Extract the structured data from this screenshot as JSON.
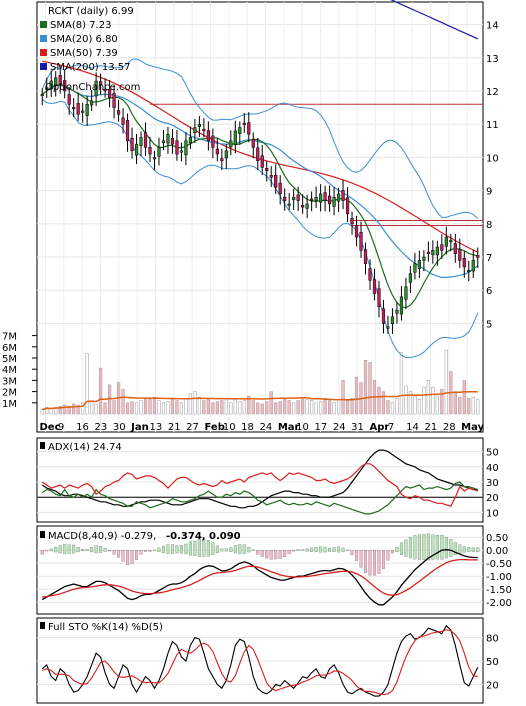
{
  "header": {
    "title": "RCKT (daily) 6.99",
    "watermark": "OptionChance.com"
  },
  "legend": [
    {
      "label": "SMA(8) 7.23",
      "color": "#1e6b1e"
    },
    {
      "label": "SMA(20) 6.80",
      "color": "#3a8ed8"
    },
    {
      "label": "SMA(50) 7.39",
      "color": "#d81e1e"
    },
    {
      "label": "SMA(200) 13.57",
      "color": "#1a1aa8"
    }
  ],
  "price_axis": {
    "ticks": [
      "14",
      "13",
      "12",
      "11",
      "10",
      "9",
      "8",
      "7",
      "6",
      "5"
    ]
  },
  "volume_axis": {
    "ticks": [
      "7M",
      "6M",
      "5M",
      "4M",
      "3M",
      "2M",
      "1M"
    ]
  },
  "date_axis": {
    "ticks": [
      "Dec",
      "9",
      "16",
      "23",
      "30",
      "Jan",
      "13",
      "21",
      "27",
      "Feb",
      "10",
      "18",
      "24",
      "Mar",
      "10",
      "17",
      "24",
      "31",
      "Apr",
      "7",
      "14",
      "21",
      "28",
      "May"
    ]
  },
  "adx": {
    "label": "ADX(14) 24.74",
    "ticks": [
      "50",
      "40",
      "30",
      "20",
      "10"
    ]
  },
  "macd": {
    "label": "MACD(8,40,9) -0.279,",
    "val1": "-0.374,",
    "val2": "0.090",
    "ticks": [
      "0.50",
      "0.00",
      "-0.50",
      "-1.00",
      "-1.50",
      "-2.00"
    ]
  },
  "sto": {
    "label": "Full STO %K(14) %D(5)",
    "ticks": [
      "80",
      "50",
      "20"
    ]
  },
  "colors": {
    "up": "#2e8b2e",
    "down": "#c41e5a",
    "sma8": "#1e6b1e",
    "sma20": "#3a8ed8",
    "sma50": "#d81e1e",
    "sma200": "#1a1aa8",
    "vol_up": "#ffffff",
    "vol_down": "#f4b8c0",
    "vol_sma": "#e06010",
    "resistance": "#c03030"
  },
  "chart_data": [
    {
      "type": "candlestick",
      "title": "RCKT (daily) 6.99",
      "close_series": [
        11.9,
        12.1,
        12.3,
        12.4,
        12.2,
        12.0,
        11.6,
        11.5,
        11.3,
        11.4,
        11.6,
        11.7,
        12.3,
        12.2,
        12.0,
        11.8,
        11.5,
        11.3,
        11.0,
        10.5,
        10.2,
        10.4,
        10.6,
        10.3,
        10.1,
        10.0,
        10.3,
        10.5,
        10.7,
        10.4,
        10.1,
        10.2,
        10.5,
        10.6,
        10.9,
        11.0,
        10.8,
        10.5,
        10.3,
        10.1,
        9.9,
        10.2,
        10.5,
        10.8,
        10.9,
        11.0,
        10.7,
        10.3,
        9.9,
        9.7,
        9.6,
        9.4,
        9.1,
        8.9,
        8.7,
        8.6,
        8.8,
        8.7,
        8.5,
        8.6,
        8.7,
        8.8,
        8.9,
        8.7,
        8.6,
        8.8,
        8.9,
        8.7,
        8.3,
        8.0,
        7.6,
        7.2,
        6.8,
        6.3,
        5.9,
        5.5,
        5.0,
        4.9,
        5.2,
        5.4,
        5.8,
        6.1,
        6.5,
        6.8,
        6.9,
        7.0,
        7.1,
        7.2,
        7.3,
        7.2,
        7.6,
        7.5,
        7.1,
        6.9,
        6.7,
        6.6,
        6.9,
        6.99
      ],
      "sma8_ends": [
        7.23
      ],
      "sma20_ends": [
        6.8
      ],
      "sma50_ends": [
        7.39
      ],
      "sma200_ends": [
        13.57
      ],
      "ylim": [
        4.5,
        14.5
      ]
    },
    {
      "type": "bar",
      "title": "Volume",
      "values": [
        0.4,
        0.6,
        0.5,
        0.6,
        0.7,
        0.8,
        0.7,
        0.9,
        0.8,
        1.0,
        5.4,
        1.2,
        0.9,
        4.1,
        1.0,
        2.6,
        1.2,
        2.8,
        2.2,
        1.0,
        1.1,
        1.0,
        1.2,
        1.4,
        1.3,
        1.5,
        1.2,
        1.0,
        1.1,
        1.3,
        1.2,
        1.0,
        1.4,
        1.8,
        2.0,
        1.5,
        1.2,
        1.3,
        1.0,
        1.1,
        1.2,
        1.4,
        1.0,
        1.3,
        1.1,
        1.2,
        1.6,
        1.2,
        1.0,
        0.9,
        1.1,
        2.0,
        1.0,
        1.1,
        1.3,
        1.2,
        1.0,
        1.2,
        1.4,
        1.3,
        1.2,
        1.0,
        1.1,
        1.4,
        1.2,
        1.0,
        1.3,
        3.0,
        1.2,
        1.4,
        3.3,
        2.8,
        4.8,
        4.6,
        3.0,
        2.4,
        2.0,
        1.2,
        1.0,
        1.4,
        5.5,
        2.5,
        2.0,
        1.6,
        1.3,
        2.4,
        3.0,
        2.4,
        1.6,
        2.2,
        5.7,
        3.8,
        2.0,
        1.5,
        3.0,
        1.4,
        1.5,
        1.3
      ],
      "ylim": [
        0,
        7.5
      ]
    },
    {
      "type": "line",
      "title": "ADX(14) 24.74",
      "series": [
        {
          "name": "ADX",
          "values": [
            28,
            26,
            25,
            24,
            22,
            21,
            21,
            22,
            22,
            21,
            20,
            19,
            18,
            17,
            17,
            16,
            15,
            15,
            14,
            14,
            15,
            16,
            17,
            17,
            18,
            18,
            18,
            17,
            16,
            15,
            15,
            15,
            16,
            17,
            18,
            19,
            19,
            19,
            18,
            17,
            16,
            15,
            14,
            14,
            13,
            13,
            14,
            14,
            15,
            17,
            19,
            21,
            22,
            23,
            24,
            24,
            23,
            23,
            22,
            22,
            21,
            21,
            20,
            20,
            20,
            21,
            22,
            23,
            26,
            30,
            34,
            38,
            42,
            46,
            49,
            51,
            51,
            50,
            48,
            46,
            44,
            42,
            41,
            40,
            38,
            37,
            36,
            34,
            32,
            31,
            30,
            29,
            28,
            28,
            27,
            26,
            25,
            24.74
          ]
        },
        {
          "name": "+DI",
          "values": [
            23,
            25,
            24,
            22,
            21,
            25,
            21,
            20,
            22,
            20,
            22,
            20,
            25,
            22,
            21,
            19,
            18,
            17,
            16,
            14,
            14,
            17,
            16,
            15,
            13,
            14,
            15,
            16,
            17,
            19,
            18,
            17,
            17,
            18,
            19,
            21,
            22,
            24,
            22,
            20,
            20,
            22,
            21,
            23,
            22,
            24,
            23,
            21,
            18,
            17,
            15,
            16,
            17,
            18,
            16,
            15,
            16,
            15,
            15,
            16,
            15,
            17,
            16,
            15,
            14,
            16,
            15,
            14,
            13,
            12,
            11,
            10,
            9,
            9,
            10,
            11,
            13,
            15,
            18,
            21,
            24,
            27,
            26,
            27,
            28,
            25,
            26,
            26,
            27,
            26,
            25,
            26,
            29,
            30,
            27,
            27,
            26,
            25
          ]
        },
        {
          "name": "-DI",
          "values": [
            30,
            28,
            26,
            27,
            28,
            26,
            28,
            27,
            26,
            28,
            29,
            27,
            22,
            24,
            27,
            28,
            30,
            31,
            34,
            36,
            35,
            32,
            33,
            34,
            34,
            33,
            31,
            29,
            26,
            29,
            32,
            33,
            33,
            31,
            29,
            28,
            29,
            28,
            27,
            28,
            31,
            29,
            30,
            31,
            32,
            30,
            33,
            34,
            35,
            36,
            35,
            36,
            33,
            31,
            33,
            36,
            35,
            36,
            35,
            34,
            33,
            31,
            31,
            32,
            30,
            29,
            30,
            31,
            32,
            34,
            37,
            40,
            42,
            42,
            40,
            37,
            34,
            31,
            29,
            27,
            22,
            20,
            19,
            21,
            20,
            18,
            18,
            17,
            16,
            16,
            15,
            14,
            20,
            27,
            24,
            26,
            25,
            24
          ]
        }
      ],
      "ylim": [
        5,
        55
      ]
    },
    {
      "type": "line",
      "title": "MACD(8,40,9)",
      "series": [
        {
          "name": "MACD",
          "values": [
            -1.9,
            -1.8,
            -1.7,
            -1.6,
            -1.5,
            -1.4,
            -1.35,
            -1.3,
            -1.35,
            -1.4,
            -1.4,
            -1.3,
            -1.2,
            -1.2,
            -1.25,
            -1.35,
            -1.45,
            -1.55,
            -1.7,
            -1.85,
            -1.9,
            -1.85,
            -1.75,
            -1.7,
            -1.7,
            -1.65,
            -1.55,
            -1.45,
            -1.35,
            -1.3,
            -1.3,
            -1.25,
            -1.15,
            -1.0,
            -0.9,
            -0.75,
            -0.65,
            -0.6,
            -0.62,
            -0.7,
            -0.8,
            -0.78,
            -0.72,
            -0.6,
            -0.5,
            -0.45,
            -0.5,
            -0.6,
            -0.75,
            -0.85,
            -0.95,
            -1.05,
            -1.1,
            -1.15,
            -1.15,
            -1.1,
            -1.05,
            -1.0,
            -1.0,
            -0.95,
            -0.9,
            -0.85,
            -0.8,
            -0.78,
            -0.8,
            -0.75,
            -0.7,
            -0.72,
            -0.8,
            -0.95,
            -1.15,
            -1.4,
            -1.65,
            -1.85,
            -2.0,
            -2.1,
            -2.1,
            -1.95,
            -1.8,
            -1.6,
            -1.35,
            -1.15,
            -0.95,
            -0.75,
            -0.6,
            -0.45,
            -0.3,
            -0.2,
            -0.1,
            0.0,
            0.02,
            0.0,
            -0.08,
            -0.15,
            -0.22,
            -0.26,
            -0.28,
            -0.279
          ]
        },
        {
          "name": "Signal",
          "values": [
            -1.8,
            -1.78,
            -1.75,
            -1.72,
            -1.68,
            -1.62,
            -1.56,
            -1.5,
            -1.46,
            -1.44,
            -1.43,
            -1.41,
            -1.38,
            -1.35,
            -1.33,
            -1.33,
            -1.35,
            -1.38,
            -1.43,
            -1.5,
            -1.57,
            -1.62,
            -1.65,
            -1.67,
            -1.67,
            -1.66,
            -1.64,
            -1.61,
            -1.57,
            -1.52,
            -1.48,
            -1.44,
            -1.39,
            -1.33,
            -1.25,
            -1.17,
            -1.07,
            -0.98,
            -0.91,
            -0.87,
            -0.86,
            -0.84,
            -0.82,
            -0.78,
            -0.72,
            -0.66,
            -0.62,
            -0.62,
            -0.65,
            -0.7,
            -0.76,
            -0.83,
            -0.89,
            -0.95,
            -0.99,
            -1.02,
            -1.03,
            -1.03,
            -1.02,
            -1.01,
            -0.99,
            -0.96,
            -0.93,
            -0.9,
            -0.88,
            -0.85,
            -0.83,
            -0.81,
            -0.81,
            -0.84,
            -0.9,
            -0.99,
            -1.11,
            -1.25,
            -1.4,
            -1.54,
            -1.65,
            -1.71,
            -1.73,
            -1.71,
            -1.64,
            -1.55,
            -1.45,
            -1.32,
            -1.2,
            -1.06,
            -0.93,
            -0.8,
            -0.68,
            -0.58,
            -0.48,
            -0.42,
            -0.38,
            -0.36,
            -0.36,
            -0.37,
            -0.374,
            -0.374
          ]
        }
      ],
      "ylim": [
        -2.3,
        0.7
      ]
    },
    {
      "type": "line",
      "title": "Full STO %K(14) %D(5)",
      "series": [
        {
          "name": "%K",
          "values": [
            40,
            45,
            30,
            25,
            40,
            35,
            20,
            10,
            12,
            20,
            30,
            45,
            60,
            55,
            35,
            20,
            15,
            30,
            45,
            40,
            20,
            10,
            20,
            30,
            25,
            15,
            25,
            40,
            60,
            75,
            70,
            55,
            50,
            70,
            80,
            78,
            60,
            40,
            30,
            20,
            15,
            25,
            45,
            70,
            78,
            75,
            55,
            30,
            15,
            10,
            8,
            12,
            20,
            18,
            25,
            20,
            15,
            22,
            30,
            28,
            35,
            40,
            30,
            28,
            40,
            45,
            35,
            20,
            10,
            8,
            12,
            15,
            10,
            8,
            5,
            5,
            10,
            20,
            40,
            60,
            75,
            82,
            85,
            78,
            80,
            85,
            92,
            90,
            88,
            85,
            95,
            90,
            70,
            45,
            22,
            18,
            30,
            42
          ]
        },
        {
          "name": "%D",
          "values": [
            38,
            40,
            38,
            33,
            33,
            33,
            31,
            25,
            22,
            20,
            21,
            28,
            38,
            48,
            50,
            44,
            36,
            30,
            29,
            30,
            31,
            28,
            24,
            22,
            23,
            22,
            22,
            27,
            34,
            46,
            58,
            65,
            62,
            60,
            64,
            70,
            73,
            70,
            62,
            48,
            34,
            25,
            23,
            31,
            47,
            62,
            70,
            65,
            52,
            37,
            22,
            15,
            12,
            14,
            16,
            18,
            19,
            20,
            23,
            25,
            28,
            31,
            32,
            32,
            34,
            37,
            37,
            34,
            30,
            25,
            18,
            13,
            11,
            11,
            10,
            8,
            7,
            8,
            12,
            23,
            40,
            55,
            67,
            76,
            81,
            82,
            84,
            86,
            87,
            88,
            90,
            89,
            84,
            76,
            60,
            42,
            31,
            30
          ]
        }
      ],
      "ylim": [
        0,
        100
      ]
    }
  ]
}
